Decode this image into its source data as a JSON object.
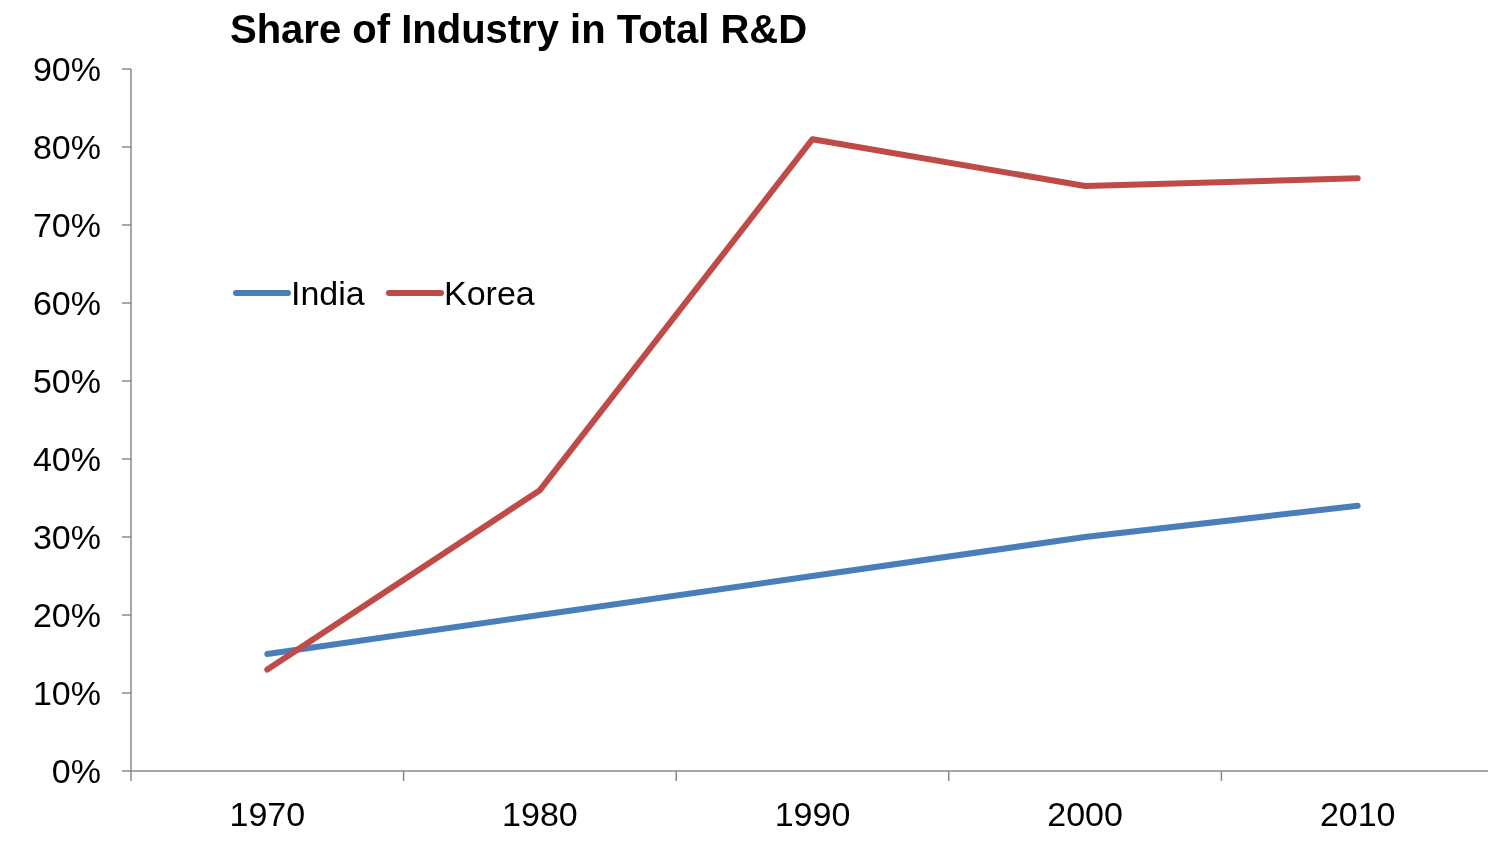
{
  "chart_data": {
    "type": "line",
    "title": "Share of Industry in Total R&D",
    "categories": [
      "1970",
      "1980",
      "1990",
      "2000",
      "2010"
    ],
    "series": [
      {
        "name": "India",
        "color": "#4a7ebb",
        "values": [
          15,
          20,
          25,
          30,
          34
        ]
      },
      {
        "name": "Korea",
        "color": "#be4b48",
        "values": [
          13,
          36,
          81,
          75,
          76
        ]
      }
    ],
    "ylim": [
      0,
      90
    ],
    "yticks": [
      {
        "value": 0,
        "label": "0%"
      },
      {
        "value": 10,
        "label": "10%"
      },
      {
        "value": 20,
        "label": "20%"
      },
      {
        "value": 30,
        "label": "30%"
      },
      {
        "value": 40,
        "label": "40%"
      },
      {
        "value": 50,
        "label": "50%"
      },
      {
        "value": 60,
        "label": "60%"
      },
      {
        "value": 70,
        "label": "70%"
      },
      {
        "value": 80,
        "label": "80%"
      },
      {
        "value": 90,
        "label": "90%"
      }
    ],
    "legend": "left",
    "grid": false,
    "marker": "none",
    "line_style": "solid"
  }
}
